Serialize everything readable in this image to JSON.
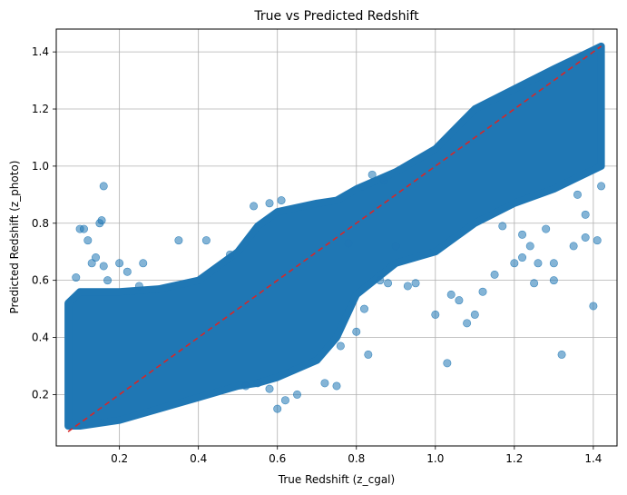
{
  "chart_data": {
    "type": "scatter",
    "title": "True vs Predicted Redshift",
    "xlabel": "True Redshift (z_cgal)",
    "ylabel": "Predicted Redshift (z_photo)",
    "xlim": [
      0.04,
      1.46
    ],
    "ylim": [
      0.02,
      1.48
    ],
    "xticks": [
      0.2,
      0.4,
      0.6,
      0.8,
      1.0,
      1.2,
      1.4
    ],
    "xtick_labels": [
      "0.2",
      "0.4",
      "0.6",
      "0.8",
      "1.0",
      "1.2",
      "1.4"
    ],
    "yticks": [
      0.2,
      0.4,
      0.6,
      0.8,
      1.0,
      1.2,
      1.4
    ],
    "ytick_labels": [
      "0.2",
      "0.4",
      "0.6",
      "0.8",
      "1.0",
      "1.2",
      "1.4"
    ],
    "grid": true,
    "point_color": "#1f77b4",
    "point_alpha": 0.55,
    "reference_line": {
      "x": [
        0.07,
        1.42
      ],
      "y": [
        0.07,
        1.42
      ],
      "color": "#d62728",
      "style": "dashed"
    },
    "density_band": [
      {
        "x": 0.07,
        "lo": 0.09,
        "hi": 0.52
      },
      {
        "x": 0.1,
        "lo": 0.09,
        "hi": 0.56
      },
      {
        "x": 0.2,
        "lo": 0.11,
        "hi": 0.56
      },
      {
        "x": 0.3,
        "lo": 0.15,
        "hi": 0.57
      },
      {
        "x": 0.4,
        "lo": 0.19,
        "hi": 0.6
      },
      {
        "x": 0.5,
        "lo": 0.23,
        "hi": 0.7
      },
      {
        "x": 0.55,
        "lo": 0.24,
        "hi": 0.79
      },
      {
        "x": 0.6,
        "lo": 0.26,
        "hi": 0.84
      },
      {
        "x": 0.7,
        "lo": 0.32,
        "hi": 0.87
      },
      {
        "x": 0.75,
        "lo": 0.4,
        "hi": 0.88
      },
      {
        "x": 0.8,
        "lo": 0.55,
        "hi": 0.92
      },
      {
        "x": 0.9,
        "lo": 0.66,
        "hi": 0.98
      },
      {
        "x": 1.0,
        "lo": 0.7,
        "hi": 1.06
      },
      {
        "x": 1.1,
        "lo": 0.8,
        "hi": 1.2
      },
      {
        "x": 1.2,
        "lo": 0.87,
        "hi": 1.27
      },
      {
        "x": 1.3,
        "lo": 0.92,
        "hi": 1.34
      },
      {
        "x": 1.42,
        "lo": 1.0,
        "hi": 1.42
      }
    ],
    "outliers": [
      [
        0.1,
        0.78
      ],
      [
        0.11,
        0.78
      ],
      [
        0.12,
        0.74
      ],
      [
        0.15,
        0.8
      ],
      [
        0.155,
        0.81
      ],
      [
        0.16,
        0.93
      ],
      [
        0.14,
        0.68
      ],
      [
        0.13,
        0.66
      ],
      [
        0.16,
        0.65
      ],
      [
        0.2,
        0.66
      ],
      [
        0.26,
        0.66
      ],
      [
        0.22,
        0.63
      ],
      [
        0.35,
        0.74
      ],
      [
        0.42,
        0.74
      ],
      [
        0.48,
        0.69
      ],
      [
        0.17,
        0.6
      ],
      [
        0.09,
        0.61
      ],
      [
        0.25,
        0.58
      ],
      [
        0.6,
        0.15
      ],
      [
        0.62,
        0.18
      ],
      [
        0.65,
        0.2
      ],
      [
        0.52,
        0.23
      ],
      [
        0.55,
        0.24
      ],
      [
        0.58,
        0.22
      ],
      [
        0.72,
        0.24
      ],
      [
        0.75,
        0.23
      ],
      [
        0.76,
        0.37
      ],
      [
        0.82,
        0.5
      ],
      [
        0.83,
        0.34
      ],
      [
        0.8,
        0.42
      ],
      [
        0.86,
        0.6
      ],
      [
        0.88,
        0.59
      ],
      [
        0.93,
        0.58
      ],
      [
        0.95,
        0.59
      ],
      [
        1.0,
        0.48
      ],
      [
        1.03,
        0.31
      ],
      [
        1.04,
        0.55
      ],
      [
        1.06,
        0.53
      ],
      [
        1.08,
        0.45
      ],
      [
        1.1,
        0.48
      ],
      [
        1.12,
        0.56
      ],
      [
        1.15,
        0.62
      ],
      [
        1.2,
        0.66
      ],
      [
        1.22,
        0.68
      ],
      [
        1.24,
        0.72
      ],
      [
        1.26,
        0.66
      ],
      [
        1.3,
        0.66
      ],
      [
        1.32,
        0.34
      ],
      [
        1.35,
        0.72
      ],
      [
        1.38,
        0.75
      ],
      [
        1.4,
        0.51
      ],
      [
        1.41,
        0.74
      ],
      [
        1.25,
        0.59
      ],
      [
        1.3,
        0.6
      ],
      [
        0.78,
        0.73
      ],
      [
        0.9,
        0.72
      ],
      [
        1.17,
        0.79
      ],
      [
        1.22,
        0.76
      ],
      [
        1.28,
        0.78
      ],
      [
        0.84,
        0.97
      ],
      [
        0.87,
        0.95
      ],
      [
        1.38,
        0.83
      ],
      [
        1.42,
        0.93
      ],
      [
        1.36,
        0.9
      ],
      [
        0.58,
        0.87
      ],
      [
        0.54,
        0.86
      ],
      [
        0.61,
        0.88
      ]
    ]
  }
}
